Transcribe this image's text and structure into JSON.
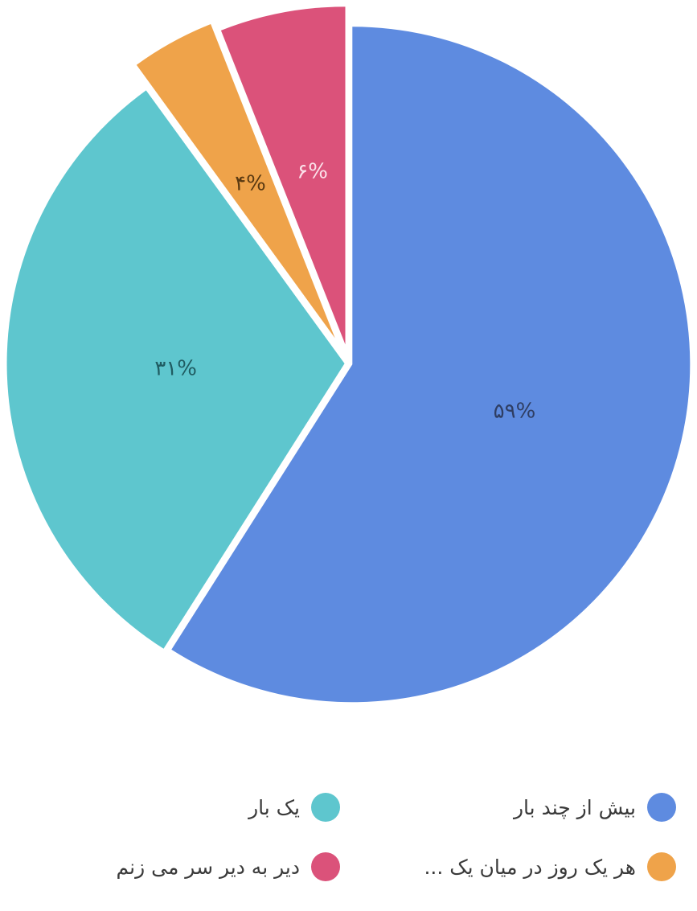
{
  "chart_data": {
    "type": "pie",
    "categories": [
      "بیش از چند بار",
      "یک بار",
      "هر یک روز در میان یک ...",
      "دیر به دیر سر می زنم"
    ],
    "values": [
      59,
      31,
      4,
      6
    ],
    "value_labels": [
      "۵۹%",
      "۳۱%",
      "۴%",
      "۶%"
    ],
    "colors": [
      "#5e8be0",
      "#5ec6ce",
      "#efa34a",
      "#db527a"
    ],
    "label_colors": [
      "#2f3e63",
      "#205c62",
      "#5a3a12",
      "#fbe2ea"
    ],
    "legend_position": "bottom",
    "title": ""
  },
  "legend": [
    {
      "label": "بیش از چند بار",
      "color": "#5e8be0"
    },
    {
      "label": "یک بار",
      "color": "#5ec6ce"
    },
    {
      "label": "هر یک روز در میان یک ...",
      "color": "#efa34a"
    },
    {
      "label": "دیر به دیر سر می زنم",
      "color": "#db527a"
    }
  ]
}
